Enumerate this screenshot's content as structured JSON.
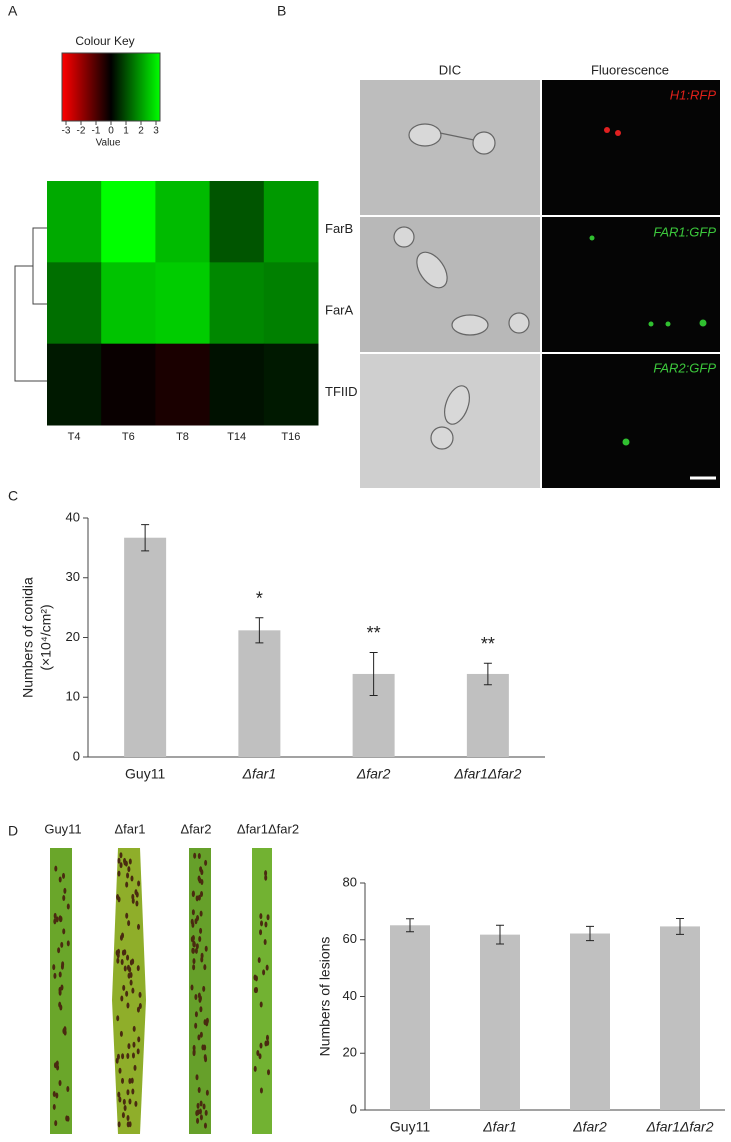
{
  "panel_labels": [
    "A",
    "B",
    "C",
    "D"
  ],
  "micrographs": {
    "columns": [
      "DIC",
      "Fluorescence"
    ],
    "labels": [
      "H1:RFP",
      "FAR1:GFP",
      "FAR2:GFP"
    ]
  },
  "leaves": [
    "Guy11",
    "Δfar1",
    "Δfar2",
    "Δfar1Δfar2"
  ],
  "chart_data": [
    {
      "type": "heatmap",
      "title": "Colour Key",
      "colorbar_label": "Value",
      "rows": [
        "FarB",
        "FarA",
        "TFIID"
      ],
      "columns": [
        "T4",
        "T6",
        "T8",
        "T14",
        "T16"
      ],
      "values": [
        [
          2.0,
          3.0,
          2.2,
          1.0,
          1.8
        ],
        [
          1.3,
          2.3,
          2.4,
          1.6,
          1.5
        ],
        [
          0.3,
          -0.1,
          -0.3,
          0.2,
          0.3
        ]
      ],
      "zlim": [
        -3,
        3
      ],
      "zticks": [
        -3,
        -2,
        -1,
        0,
        1,
        2,
        3
      ],
      "colors": [
        "#ff0000",
        "#000000",
        "#00ff00"
      ]
    },
    {
      "type": "bar",
      "ylabel": [
        "Numbers of conidia",
        "(×10⁴/cm²)"
      ],
      "categories": [
        "Guy11",
        "Δfar1",
        "Δfar2",
        "Δfar1Δfar2"
      ],
      "values": [
        36.7,
        21.2,
        13.9,
        13.9
      ],
      "errors": [
        2.2,
        2.1,
        3.6,
        1.8
      ],
      "value_annotations": [
        null,
        "*",
        "**",
        "**"
      ],
      "color": "#c0c0c0",
      "ylim": [
        0,
        40
      ],
      "yticks": [
        0,
        10,
        20,
        30,
        40
      ]
    },
    {
      "type": "bar",
      "ylabel": [
        "Numbers of lesions"
      ],
      "categories": [
        "Guy11",
        "Δfar1",
        "Δfar2",
        "Δfar1Δfar2"
      ],
      "values": [
        65.1,
        61.8,
        62.2,
        64.7
      ],
      "errors": [
        2.3,
        3.3,
        2.5,
        2.8
      ],
      "color": "#c0c0c0",
      "ylim": [
        0,
        80
      ],
      "yticks": [
        0,
        20,
        40,
        60,
        80
      ]
    }
  ]
}
